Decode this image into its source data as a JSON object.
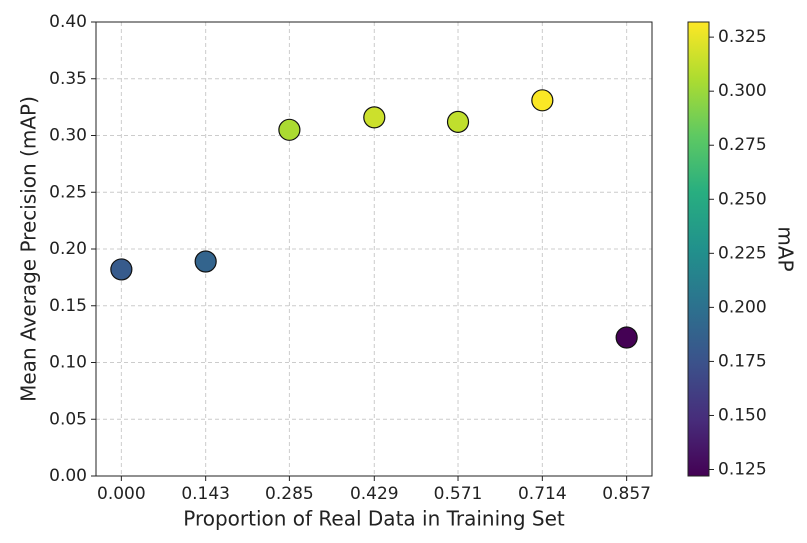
{
  "chart_data": {
    "type": "scatter",
    "x_label": "Proportion of Real Data in Training Set",
    "y_label": "Mean Average Precision (mAP)",
    "x": [
      0.0,
      0.143,
      0.285,
      0.429,
      0.571,
      0.714,
      0.857
    ],
    "values": [
      0.182,
      0.189,
      0.305,
      0.316,
      0.312,
      0.331,
      0.122
    ],
    "xlim": [
      -0.043,
      0.9
    ],
    "ylim": [
      0,
      0.4
    ],
    "xticks": [
      {
        "value": 0,
        "label": "0.000"
      },
      {
        "value": 0.143,
        "label": "0.143"
      },
      {
        "value": 0.285,
        "label": "0.285"
      },
      {
        "value": 0.429,
        "label": "0.429"
      },
      {
        "value": 0.571,
        "label": "0.571"
      },
      {
        "value": 0.714,
        "label": "0.714"
      },
      {
        "value": 0.857,
        "label": "0.857"
      }
    ],
    "yticks": [
      {
        "value": 0,
        "label": "0.00"
      },
      0.05,
      {
        "value": 0.1,
        "label": "0.10"
      },
      0.15,
      {
        "value": 0.2,
        "label": "0.20"
      },
      0.25,
      {
        "value": 0.3,
        "label": "0.30"
      },
      0.35,
      {
        "value": 0.4,
        "label": "0.40"
      }
    ],
    "grid": true,
    "colormap": "viridis",
    "colorbar_label": "mAP",
    "clim": [
      0.122,
      0.332
    ],
    "cticks": [
      0.125,
      {
        "value": 0.15,
        "label": "0.150"
      },
      0.175,
      {
        "value": 0.2,
        "label": "0.200"
      },
      0.225,
      {
        "value": 0.25,
        "label": "0.250"
      },
      0.275,
      {
        "value": 0.3,
        "label": "0.300"
      },
      0.325
    ]
  }
}
